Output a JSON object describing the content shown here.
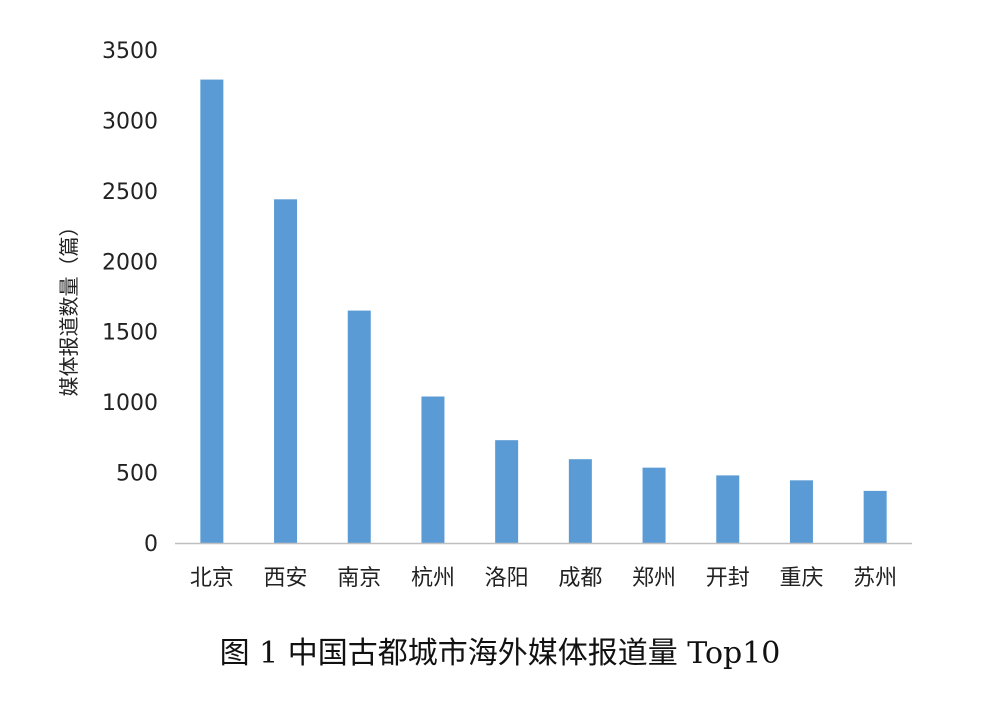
{
  "caption": "图 1 中国古都城市海外媒体报道量 Top10",
  "colors": {
    "bar": "#5b9bd5",
    "axis": "#bfbfbf",
    "text": "#222222"
  },
  "chart_data": {
    "type": "bar",
    "title": "",
    "xlabel": "",
    "ylabel": "媒体报道数量（篇）",
    "categories": [
      "北京",
      "西安",
      "南京",
      "杭州",
      "洛阳",
      "成都",
      "郑州",
      "开封",
      "重庆",
      "苏州"
    ],
    "values": [
      3290,
      2440,
      1650,
      1040,
      730,
      595,
      535,
      480,
      445,
      370
    ],
    "ylim": [
      0,
      3500
    ],
    "yticks": [
      0,
      500,
      1000,
      1500,
      2000,
      2500,
      3000,
      3500
    ],
    "grid": false,
    "legend": "none"
  }
}
